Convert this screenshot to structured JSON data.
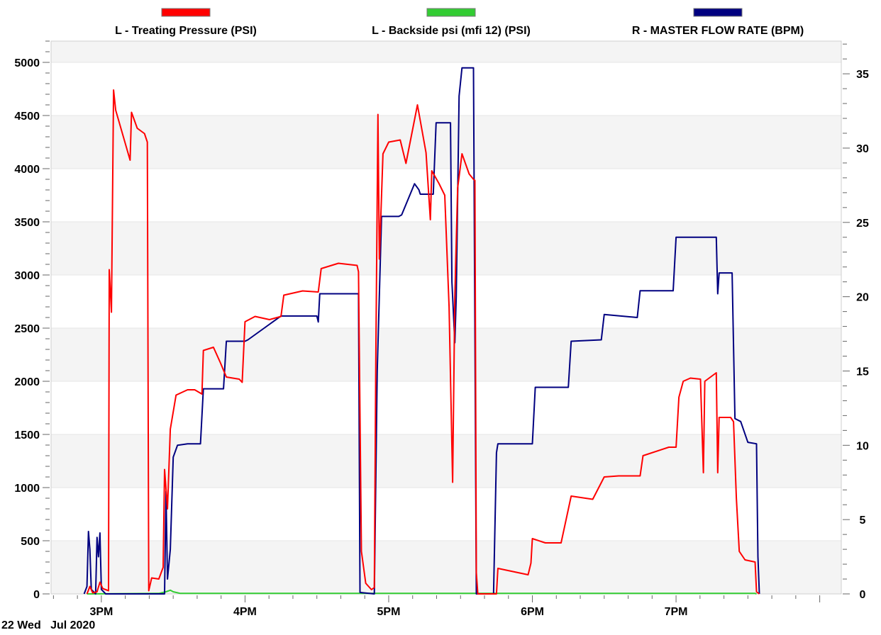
{
  "chart_data": {
    "type": "line",
    "date_label": "22 Wed   Jul 2020",
    "x_ticks": [
      {
        "label": "3PM",
        "t": 15.0
      },
      {
        "label": "4PM",
        "t": 16.0
      },
      {
        "label": "5PM",
        "t": 17.0
      },
      {
        "label": "6PM",
        "t": 18.0
      },
      {
        "label": "7PM",
        "t": 19.0
      }
    ],
    "xlim": [
      14.65,
      20.15
    ],
    "left_axis": {
      "ylim": [
        0,
        5200
      ],
      "ticks": [
        0,
        500,
        1000,
        1500,
        2000,
        2500,
        3000,
        3500,
        4000,
        4500,
        5000
      ]
    },
    "right_axis": {
      "ylim": [
        0,
        37.2
      ],
      "ticks": [
        0,
        5,
        10,
        15,
        20,
        25,
        30,
        35
      ]
    },
    "grid": true,
    "legend_position": "top",
    "series": [
      {
        "name": "L - Treating Pressure (PSI)",
        "axis": "left",
        "color": "#ff0000",
        "points": [
          [
            14.9,
            0
          ],
          [
            14.92,
            70
          ],
          [
            14.94,
            10
          ],
          [
            14.97,
            20
          ],
          [
            14.99,
            110
          ],
          [
            15.01,
            50
          ],
          [
            15.05,
            30
          ],
          [
            15.055,
            3050
          ],
          [
            15.07,
            2650
          ],
          [
            15.085,
            4740
          ],
          [
            15.1,
            4550
          ],
          [
            15.2,
            4080
          ],
          [
            15.21,
            4530
          ],
          [
            15.25,
            4380
          ],
          [
            15.3,
            4330
          ],
          [
            15.32,
            4250
          ],
          [
            15.33,
            30
          ],
          [
            15.35,
            150
          ],
          [
            15.4,
            140
          ],
          [
            15.43,
            250
          ],
          [
            15.44,
            1170
          ],
          [
            15.46,
            800
          ],
          [
            15.48,
            1550
          ],
          [
            15.52,
            1870
          ],
          [
            15.6,
            1920
          ],
          [
            15.65,
            1920
          ],
          [
            15.7,
            1880
          ],
          [
            15.71,
            2290
          ],
          [
            15.78,
            2320
          ],
          [
            15.83,
            2170
          ],
          [
            15.87,
            2040
          ],
          [
            15.96,
            2020
          ],
          [
            15.98,
            1990
          ],
          [
            16.0,
            2560
          ],
          [
            16.07,
            2610
          ],
          [
            16.17,
            2580
          ],
          [
            16.25,
            2610
          ],
          [
            16.27,
            2810
          ],
          [
            16.4,
            2850
          ],
          [
            16.51,
            2840
          ],
          [
            16.53,
            3060
          ],
          [
            16.65,
            3110
          ],
          [
            16.78,
            3090
          ],
          [
            16.79,
            3030
          ],
          [
            16.81,
            400
          ],
          [
            16.84,
            100
          ],
          [
            16.88,
            40
          ],
          [
            16.9,
            60
          ],
          [
            16.91,
            2200
          ],
          [
            16.925,
            4510
          ],
          [
            16.935,
            3150
          ],
          [
            16.96,
            4140
          ],
          [
            17.0,
            4250
          ],
          [
            17.08,
            4270
          ],
          [
            17.12,
            4050
          ],
          [
            17.2,
            4600
          ],
          [
            17.26,
            4150
          ],
          [
            17.29,
            3520
          ],
          [
            17.3,
            3980
          ],
          [
            17.35,
            3860
          ],
          [
            17.39,
            3750
          ],
          [
            17.42,
            2700
          ],
          [
            17.445,
            1050
          ],
          [
            17.46,
            2800
          ],
          [
            17.48,
            3820
          ],
          [
            17.51,
            4140
          ],
          [
            17.56,
            3950
          ],
          [
            17.59,
            3900
          ],
          [
            17.6,
            3890
          ],
          [
            17.61,
            200
          ],
          [
            17.62,
            0
          ],
          [
            17.75,
            0
          ],
          [
            17.76,
            240
          ],
          [
            17.9,
            200
          ],
          [
            17.97,
            180
          ],
          [
            17.99,
            290
          ],
          [
            18.0,
            520
          ],
          [
            18.09,
            480
          ],
          [
            18.17,
            480
          ],
          [
            18.2,
            480
          ],
          [
            18.27,
            920
          ],
          [
            18.42,
            890
          ],
          [
            18.5,
            1100
          ],
          [
            18.6,
            1110
          ],
          [
            18.75,
            1110
          ],
          [
            18.77,
            1300
          ],
          [
            18.95,
            1380
          ],
          [
            19.0,
            1380
          ],
          [
            19.02,
            1850
          ],
          [
            19.05,
            2000
          ],
          [
            19.1,
            2030
          ],
          [
            19.17,
            2020
          ],
          [
            19.19,
            1140
          ],
          [
            19.2,
            2000
          ],
          [
            19.28,
            2080
          ],
          [
            19.29,
            1140
          ],
          [
            19.3,
            1660
          ],
          [
            19.38,
            1660
          ],
          [
            19.4,
            1620
          ],
          [
            19.42,
            900
          ],
          [
            19.44,
            400
          ],
          [
            19.48,
            320
          ],
          [
            19.55,
            300
          ],
          [
            19.56,
            20
          ],
          [
            19.58,
            0
          ]
        ]
      },
      {
        "name": "L - Backside psi (mfi 12) (PSI)",
        "axis": "left",
        "color": "#33cc33",
        "points": [
          [
            14.9,
            0
          ],
          [
            15.4,
            5
          ],
          [
            15.45,
            20
          ],
          [
            15.48,
            35
          ],
          [
            15.5,
            20
          ],
          [
            15.55,
            5
          ],
          [
            16.0,
            5
          ],
          [
            17.0,
            5
          ],
          [
            18.0,
            5
          ],
          [
            19.0,
            5
          ],
          [
            19.55,
            5
          ],
          [
            19.56,
            0
          ]
        ]
      },
      {
        "name": "R - MASTER FLOW RATE (BPM)",
        "axis": "right",
        "color": "#000080",
        "points": [
          [
            14.88,
            0
          ],
          [
            14.9,
            0.5
          ],
          [
            14.91,
            4.2
          ],
          [
            14.92,
            3.0
          ],
          [
            14.93,
            0.3
          ],
          [
            14.96,
            0
          ],
          [
            14.97,
            3.8
          ],
          [
            14.98,
            2.5
          ],
          [
            14.99,
            4.1
          ],
          [
            15.0,
            0.3
          ],
          [
            15.03,
            0
          ],
          [
            15.44,
            0
          ],
          [
            15.45,
            6.9
          ],
          [
            15.46,
            1.0
          ],
          [
            15.48,
            3.0
          ],
          [
            15.5,
            9.2
          ],
          [
            15.53,
            10.0
          ],
          [
            15.6,
            10.1
          ],
          [
            15.69,
            10.1
          ],
          [
            15.71,
            13.8
          ],
          [
            15.82,
            13.8
          ],
          [
            15.85,
            13.8
          ],
          [
            15.87,
            17.0
          ],
          [
            15.98,
            17.0
          ],
          [
            16.0,
            17.0
          ],
          [
            16.02,
            17.1
          ],
          [
            16.25,
            18.7
          ],
          [
            16.5,
            18.7
          ],
          [
            16.51,
            18.3
          ],
          [
            16.52,
            20.2
          ],
          [
            16.79,
            20.2
          ],
          [
            16.8,
            0.1
          ],
          [
            16.9,
            0
          ],
          [
            16.92,
            15.0
          ],
          [
            16.95,
            25.4
          ],
          [
            17.07,
            25.4
          ],
          [
            17.09,
            25.5
          ],
          [
            17.18,
            27.6
          ],
          [
            17.21,
            27.2
          ],
          [
            17.22,
            26.9
          ],
          [
            17.31,
            26.9
          ],
          [
            17.33,
            31.7
          ],
          [
            17.43,
            31.7
          ],
          [
            17.44,
            21.0
          ],
          [
            17.46,
            16.9
          ],
          [
            17.47,
            20.0
          ],
          [
            17.49,
            33.5
          ],
          [
            17.51,
            35.4
          ],
          [
            17.59,
            35.4
          ],
          [
            17.61,
            0
          ],
          [
            17.73,
            0
          ],
          [
            17.75,
            9.5
          ],
          [
            17.76,
            10.1
          ],
          [
            18.0,
            10.1
          ],
          [
            18.02,
            13.9
          ],
          [
            18.25,
            13.9
          ],
          [
            18.27,
            17.0
          ],
          [
            18.48,
            17.1
          ],
          [
            18.5,
            18.8
          ],
          [
            18.73,
            18.6
          ],
          [
            18.75,
            20.4
          ],
          [
            18.98,
            20.4
          ],
          [
            19.0,
            24.0
          ],
          [
            19.28,
            24.0
          ],
          [
            19.29,
            20.2
          ],
          [
            19.3,
            21.6
          ],
          [
            19.39,
            21.6
          ],
          [
            19.41,
            11.8
          ],
          [
            19.45,
            11.6
          ],
          [
            19.5,
            10.2
          ],
          [
            19.56,
            10.1
          ],
          [
            19.57,
            2.5
          ],
          [
            19.58,
            0
          ]
        ]
      }
    ]
  }
}
